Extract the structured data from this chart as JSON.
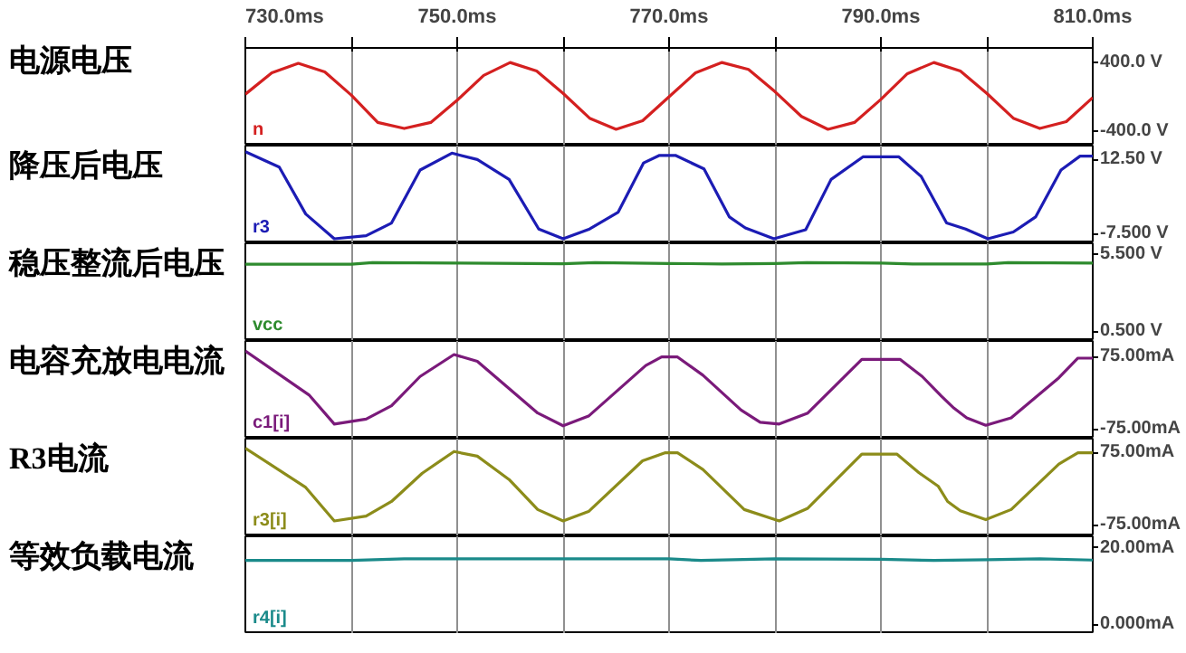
{
  "chart_data": [
    {
      "type": "line",
      "ylabel": "电源电压",
      "xlim": [
        730,
        810
      ],
      "xticks": [
        {
          "value": 730,
          "label": "730.0ms"
        },
        {
          "value": 740,
          "label": null
        },
        {
          "value": 750,
          "label": "750.0ms"
        },
        {
          "value": 760,
          "label": null
        },
        {
          "value": 770,
          "label": "770.0ms"
        },
        {
          "value": 780,
          "label": null
        },
        {
          "value": 790,
          "label": "790.0ms"
        },
        {
          "value": 800,
          "label": null
        },
        {
          "value": 810,
          "label": "810.0ms"
        }
      ],
      "ylim": [
        -570,
        570
      ],
      "yticks": [
        {
          "value": 400,
          "label": "400.0 V"
        },
        {
          "value": -400,
          "label": "-400.0 V"
        }
      ],
      "grid": "x",
      "series": [
        {
          "name": "n",
          "color": "#d42020",
          "x": [
            730,
            732.5,
            735,
            737.5,
            740,
            742.5,
            745,
            747.5,
            750,
            752.5,
            755,
            757.5,
            760,
            762.5,
            765,
            767.5,
            770,
            772.5,
            775,
            777.5,
            780,
            782.5,
            785,
            787.5,
            790,
            792.5,
            795,
            797.5,
            800,
            802.5,
            805,
            807.5,
            810
          ],
          "values": [
            30,
            280,
            390,
            290,
            20,
            -300,
            -370,
            -300,
            -40,
            250,
            400,
            300,
            40,
            -250,
            -380,
            -280,
            0,
            280,
            400,
            320,
            60,
            -230,
            -380,
            -300,
            -30,
            270,
            400,
            300,
            40,
            -250,
            -370,
            -290,
            -10
          ]
        }
      ]
    },
    {
      "type": "line",
      "ylabel": "降压后电压",
      "xlim": [
        730,
        810
      ],
      "xticks": [
        {
          "value": 730,
          "label": null
        },
        {
          "value": 740,
          "label": null
        },
        {
          "value": 750,
          "label": null
        },
        {
          "value": 760,
          "label": null
        },
        {
          "value": 770,
          "label": null
        },
        {
          "value": 780,
          "label": null
        },
        {
          "value": 790,
          "label": null
        },
        {
          "value": 800,
          "label": null
        },
        {
          "value": 810,
          "label": null
        }
      ],
      "ylim": [
        -9.8,
        16.2
      ],
      "yticks": [
        {
          "value": 12.5,
          "label": "12.50 V"
        },
        {
          "value": -7.5,
          "label": "-7.500 V"
        }
      ],
      "grid": "x",
      "tick_labels": "y",
      "series": [
        {
          "name": "r3",
          "color": "#1c1cb4",
          "x": [
            730,
            733.2,
            735.7,
            738.4,
            741.4,
            743.8,
            746.5,
            749.5,
            751.9,
            754.9,
            757.7,
            760,
            762.5,
            765.2,
            767.6,
            769.1,
            770.6,
            773.3,
            775.7,
            777.2,
            779.9,
            782.9,
            785.3,
            788.3,
            791.7,
            793.8,
            796.2,
            798,
            800.1,
            802.5,
            804.6,
            807,
            808.8,
            810
          ],
          "values": [
            14.6,
            10.5,
            -2,
            -8.6,
            -7.8,
            -4.4,
            9.7,
            14.2,
            12.5,
            7.2,
            -6,
            -8.6,
            -6,
            -1.5,
            11.6,
            13.6,
            13.6,
            10,
            -2.8,
            -5.7,
            -8.6,
            -6.2,
            7.2,
            13.2,
            13.2,
            8,
            -4.4,
            -6,
            -8.6,
            -6.8,
            -2.8,
            9.7,
            13.4,
            13.4
          ]
        }
      ]
    },
    {
      "type": "line",
      "ylabel": "稳压整流后电压",
      "xlim": [
        730,
        810
      ],
      "xticks": [
        {
          "value": 730,
          "label": null
        },
        {
          "value": 740,
          "label": null
        },
        {
          "value": 750,
          "label": null
        },
        {
          "value": 760,
          "label": null
        },
        {
          "value": 770,
          "label": null
        },
        {
          "value": 780,
          "label": null
        },
        {
          "value": 790,
          "label": null
        },
        {
          "value": 800,
          "label": null
        },
        {
          "value": 810,
          "label": null
        }
      ],
      "ylim": [
        -0.1,
        6.2
      ],
      "yticks": [
        {
          "value": 5.5,
          "label": "5.500 V"
        },
        {
          "value": 0.5,
          "label": "0.500 V"
        }
      ],
      "grid": "x",
      "tick_labels": "y",
      "series": [
        {
          "name": "vcc",
          "color": "#2e8b2e",
          "x": [
            730,
            740,
            742,
            750,
            760,
            763,
            770,
            775,
            780,
            783,
            790,
            793,
            800,
            802,
            810
          ],
          "values": [
            4.85,
            4.85,
            4.95,
            4.92,
            4.88,
            4.95,
            4.9,
            4.87,
            4.9,
            4.95,
            4.92,
            4.87,
            4.87,
            4.95,
            4.92
          ]
        }
      ]
    },
    {
      "type": "line",
      "ylabel": "电容充放电电流",
      "xlim": [
        730,
        810
      ],
      "xticks": [
        {
          "value": 730,
          "label": null
        },
        {
          "value": 740,
          "label": null
        },
        {
          "value": 750,
          "label": null
        },
        {
          "value": 760,
          "label": null
        },
        {
          "value": 770,
          "label": null
        },
        {
          "value": 780,
          "label": null
        },
        {
          "value": 790,
          "label": null
        },
        {
          "value": 800,
          "label": null
        },
        {
          "value": 810,
          "label": null
        }
      ],
      "ylim": [
        -95,
        107
      ],
      "yticks": [
        {
          "value": 75,
          "label": "75.00mA"
        },
        {
          "value": -75,
          "label": "-75.00mA"
        }
      ],
      "grid": "x",
      "tick_labels": "y",
      "series": [
        {
          "name": "c1[i]",
          "color": "#7a1a7a",
          "x": [
            730,
            736,
            738.4,
            741.4,
            743.8,
            746.5,
            749.7,
            751.9,
            757.6,
            760,
            762.4,
            767.8,
            769.3,
            770.8,
            773.2,
            776.8,
            778.6,
            780.4,
            783.1,
            788.2,
            791.8,
            793.9,
            795.7,
            796.9,
            798.1,
            799.9,
            802.3,
            806.8,
            808.6,
            810
          ],
          "values": [
            86.5,
            -4.4,
            -64.8,
            -54.6,
            -27,
            33.6,
            78.9,
            65,
            -42,
            -68.4,
            -48.4,
            56.3,
            73.9,
            73.9,
            36.1,
            -35.8,
            -61,
            -64.8,
            -42,
            69,
            69,
            33.6,
            -6.9,
            -32,
            -52,
            -67.3,
            -52,
            30.9,
            71.5,
            71.5
          ]
        }
      ]
    },
    {
      "type": "line",
      "ylabel": "R3电流",
      "xlim": [
        730,
        810
      ],
      "xticks": [
        {
          "value": 730,
          "label": null
        },
        {
          "value": 740,
          "label": null
        },
        {
          "value": 750,
          "label": null
        },
        {
          "value": 760,
          "label": null
        },
        {
          "value": 770,
          "label": null
        },
        {
          "value": 780,
          "label": null
        },
        {
          "value": 790,
          "label": null
        },
        {
          "value": 800,
          "label": null
        },
        {
          "value": 810,
          "label": null
        }
      ],
      "ylim": [
        -99,
        104
      ],
      "yticks": [
        {
          "value": 75,
          "label": "75.00mA"
        },
        {
          "value": -75,
          "label": "-75.00mA"
        }
      ],
      "grid": "x",
      "tick_labels": "y",
      "series": [
        {
          "name": "r3[i]",
          "color": "#8c8c1a",
          "x": [
            730,
            735.7,
            738.4,
            741.4,
            743.8,
            746.7,
            749.7,
            751.9,
            754.9,
            757.6,
            760,
            762.4,
            767.5,
            769.6,
            770.8,
            773.2,
            777.1,
            780.4,
            783.1,
            788.2,
            791.5,
            793.6,
            795.4,
            796.3,
            797.5,
            799.9,
            802.3,
            806.8,
            808.6,
            810
          ],
          "values": [
            84.3,
            2.6,
            -67,
            -57,
            -26.6,
            32.2,
            77.3,
            67.6,
            19,
            -43.3,
            -67,
            -47.5,
            57.9,
            74.6,
            74.6,
            40,
            -43.3,
            -67,
            -40.6,
            71.9,
            71.9,
            33,
            5.4,
            -26.6,
            -46,
            -64.3,
            -43.3,
            51.3,
            74.6,
            74.6
          ]
        }
      ]
    },
    {
      "type": "line",
      "ylabel": "等效负载电流",
      "xlim": [
        730,
        810
      ],
      "xticks": [
        {
          "value": 730,
          "label": null
        },
        {
          "value": 740,
          "label": null
        },
        {
          "value": 750,
          "label": null
        },
        {
          "value": 760,
          "label": null
        },
        {
          "value": 770,
          "label": null
        },
        {
          "value": 780,
          "label": null
        },
        {
          "value": 790,
          "label": null
        },
        {
          "value": 800,
          "label": null
        },
        {
          "value": 810,
          "label": null
        }
      ],
      "ylim": [
        -2.1,
        23
      ],
      "yticks": [
        {
          "value": 20,
          "label": "20.00mA"
        },
        {
          "value": 0,
          "label": "0.000mA"
        }
      ],
      "grid": "x",
      "tick_labels": "y",
      "series": [
        {
          "name": "r4[i]",
          "color": "#1a8a8a",
          "x": [
            730,
            740,
            745,
            750,
            760,
            770,
            773,
            780,
            790,
            795,
            800,
            805,
            810
          ],
          "values": [
            16.8,
            16.8,
            17.2,
            17.2,
            17.2,
            17.2,
            16.8,
            17.2,
            17.1,
            16.8,
            17,
            17.2,
            16.9
          ]
        }
      ]
    }
  ]
}
